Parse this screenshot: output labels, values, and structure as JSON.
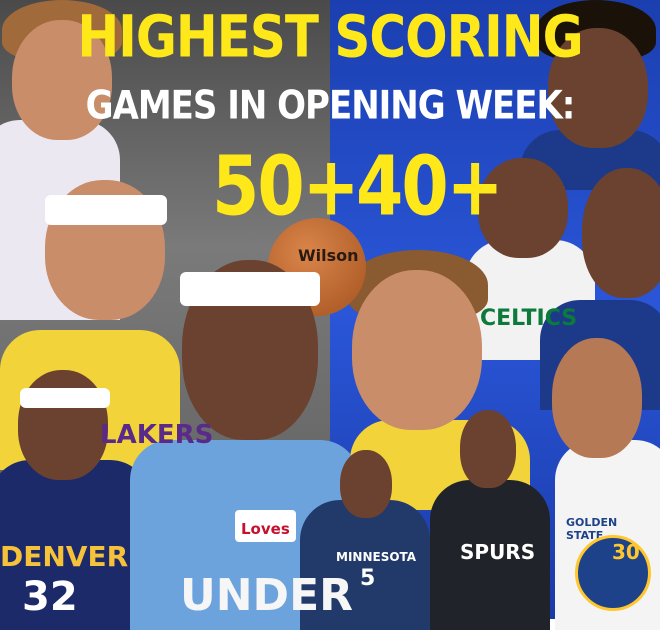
{
  "title": {
    "line1": "HIGHEST SCORING",
    "line2": "GAMES IN OPENING WEEK:"
  },
  "categories": {
    "left": "50+",
    "right": "40+"
  },
  "jersey_text": {
    "denver": "DENVER",
    "denver_number": "32",
    "minnesota": "MINNESOTA",
    "minnesota_number": "5",
    "spurs": "SPURS",
    "golden_state": "GOLDEN STATE",
    "golden_state_number": "30",
    "celtics": "CELTICS",
    "lakers": "LAKERS",
    "okc_patch": "Loves",
    "okc": "UNDER",
    "ball_brand": "Wilson"
  },
  "colors": {
    "title_yellow": "#ffe81a",
    "left_bg": "#6a6a6a",
    "right_bg": "#2a56d8"
  }
}
